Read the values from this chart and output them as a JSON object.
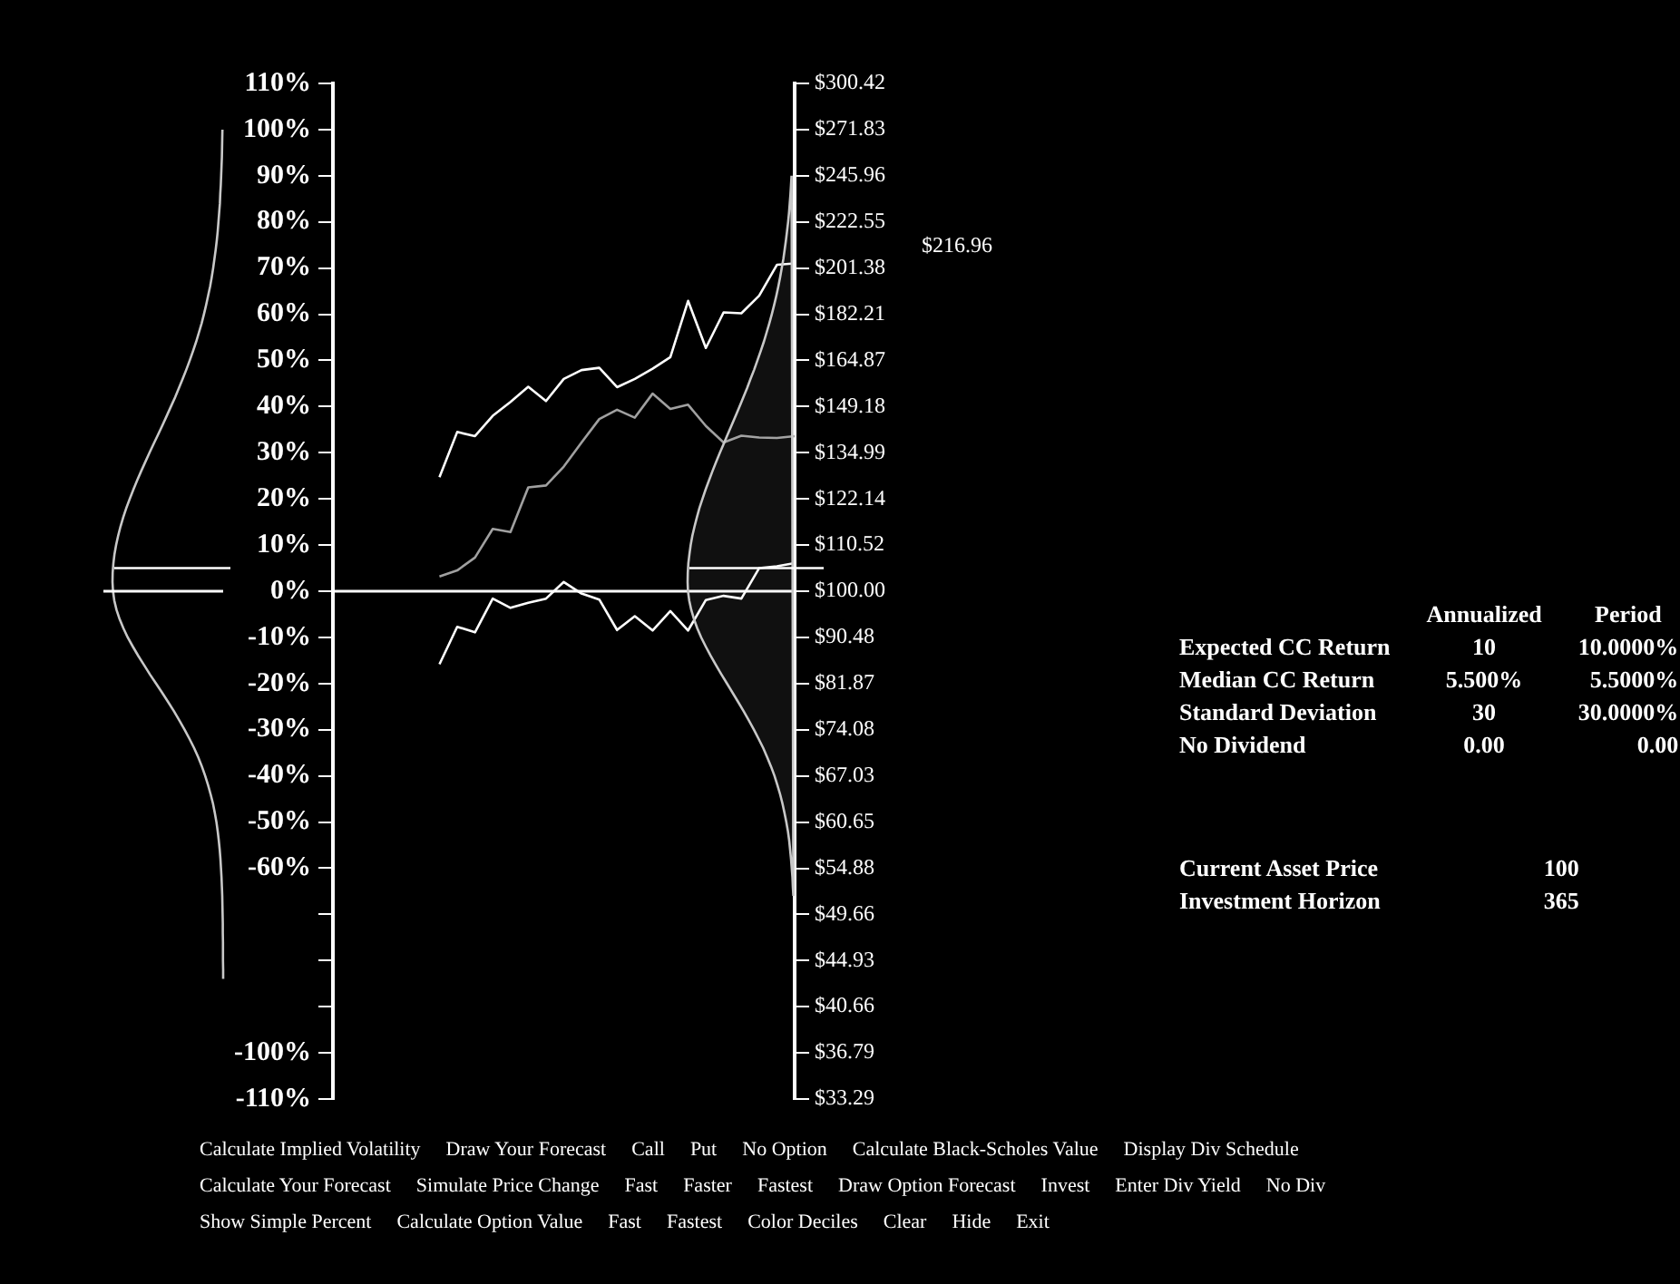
{
  "chart_data": {
    "type": "line",
    "categories": [
      null,
      null,
      null,
      null,
      null,
      null,
      null,
      null,
      null,
      null,
      null,
      null,
      null,
      null,
      null,
      null,
      null,
      null,
      null,
      null,
      null,
      null,
      null,
      null,
      null,
      null,
      null
    ],
    "ylim": [
      -110,
      110
    ],
    "yticks": [
      {
        "value": 110,
        "label": "110%"
      },
      {
        "value": 100,
        "label": "100%"
      },
      {
        "value": 90,
        "label": "90%"
      },
      {
        "value": 80,
        "label": "80%"
      },
      {
        "value": 70,
        "label": "70%"
      },
      {
        "value": 60,
        "label": "60%"
      },
      {
        "value": 50,
        "label": "50%"
      },
      {
        "value": 40,
        "label": "40%"
      },
      {
        "value": 30,
        "label": "30%"
      },
      {
        "value": 20,
        "label": "20%"
      },
      {
        "value": 10,
        "label": "10%"
      },
      {
        "value": 0,
        "label": "0%"
      },
      {
        "value": -10,
        "label": "-10%"
      },
      {
        "value": -20,
        "label": "-20%"
      },
      {
        "value": -30,
        "label": "-30%"
      },
      {
        "value": -40,
        "label": "-40%"
      },
      {
        "value": -50,
        "label": "-50%"
      },
      {
        "value": -60,
        "label": "-60%"
      },
      {
        "value": -70,
        "label": null
      },
      {
        "value": -80,
        "label": null
      },
      {
        "value": -90,
        "label": null
      },
      {
        "value": -100,
        "label": "-100%"
      },
      {
        "value": -110,
        "label": "-110%"
      }
    ],
    "log": "y2",
    "y2lim": [
      33.29,
      300.42
    ],
    "y2ticks": [
      {
        "value": 300.42,
        "label": "$300.42"
      },
      {
        "value": 271.83,
        "label": "$271.83"
      },
      {
        "value": 245.96,
        "label": "$245.96"
      },
      {
        "value": 222.55,
        "label": "$222.55"
      },
      {
        "value": 201.38,
        "label": "$201.38"
      },
      {
        "value": 182.21,
        "label": "$182.21"
      },
      {
        "value": 164.87,
        "label": "$164.87"
      },
      {
        "value": 149.18,
        "label": "$149.18"
      },
      {
        "value": 134.99,
        "label": "$134.99"
      },
      {
        "value": 122.14,
        "label": "$122.14"
      },
      {
        "value": 110.52,
        "label": "$110.52"
      },
      {
        "value": 100,
        "label": "$100.00"
      },
      {
        "value": 90.48,
        "label": "$90.48"
      },
      {
        "value": 81.87,
        "label": "$81.87"
      },
      {
        "value": 74.08,
        "label": "$74.08"
      },
      {
        "value": 67.03,
        "label": "$67.03"
      },
      {
        "value": 60.65,
        "label": "$60.65"
      },
      {
        "value": 54.88,
        "label": "$54.88"
      },
      {
        "value": 49.66,
        "label": "$49.66"
      },
      {
        "value": 44.93,
        "label": "$44.93"
      },
      {
        "value": 40.66,
        "label": "$40.66"
      },
      {
        "value": 36.79,
        "label": "$36.79"
      },
      {
        "value": 33.29,
        "label": "$33.29"
      }
    ],
    "tick_labels": "y",
    "grid": false,
    "legend": false,
    "series": [
      {
        "color": "#ffffff",
        "values": [
          null,
          null,
          null,
          null,
          null,
          null,
          24.7,
          34.5,
          33.6,
          38,
          41,
          44.3,
          41.2,
          46,
          47.9,
          48.4,
          44.2,
          46,
          48.2,
          50.7,
          62.9,
          52.7,
          60.4,
          60.2,
          64,
          70.7,
          71
        ]
      },
      {
        "color": "#a0a0a0",
        "values": [
          null,
          null,
          null,
          null,
          null,
          null,
          3.2,
          4.5,
          7.3,
          13.5,
          12.8,
          22.5,
          22.9,
          27,
          32.2,
          37.3,
          39.3,
          37.6,
          42.8,
          39.5,
          40.4,
          35.8,
          32.2,
          33.7,
          33.3,
          33.2,
          33.6
        ]
      },
      {
        "color": "#ffffff",
        "values": [
          null,
          null,
          null,
          null,
          null,
          null,
          -15.8,
          -7.7,
          -8.9,
          -1.6,
          -3.6,
          -2.5,
          -1.6,
          2,
          -0.5,
          -1.8,
          -8.4,
          -5.4,
          -8.5,
          -4.3,
          -8.5,
          -1.9,
          -1,
          -1.6,
          5,
          5.4,
          6.1
        ]
      }
    ],
    "ref_lines": [
      {
        "axis": "y",
        "value": 0,
        "color": "#ffffff"
      }
    ],
    "annotations": [
      "$216.96",
      "Annualized",
      "Period",
      "Expected CC Return",
      "10",
      "10.0000%",
      "Median CC Return",
      "5.500%",
      "5.5000%",
      "Standard Deviation",
      "30",
      "30.0000%",
      "No Dividend",
      "0.00",
      "0.00",
      "Current Asset Price",
      "100",
      "Investment Horizon",
      "365",
      "Calculate Implied Volatility",
      "Draw Your Forecast",
      "Call",
      "Put",
      "No Option",
      "Calculate Black-Scholes Value",
      "Display Div Schedule",
      "Calculate Your Forecast",
      "Simulate Price Change",
      "Fast",
      "Faster",
      "Fastest",
      "Draw Option Forecast",
      "Invest",
      "Enter Div Yield",
      "No Div",
      "Show Simple Percent",
      "Calculate Option Value",
      "Fast",
      "Fastest",
      "Color Deciles",
      "Clear",
      "Hide",
      "Exit"
    ]
  }
}
